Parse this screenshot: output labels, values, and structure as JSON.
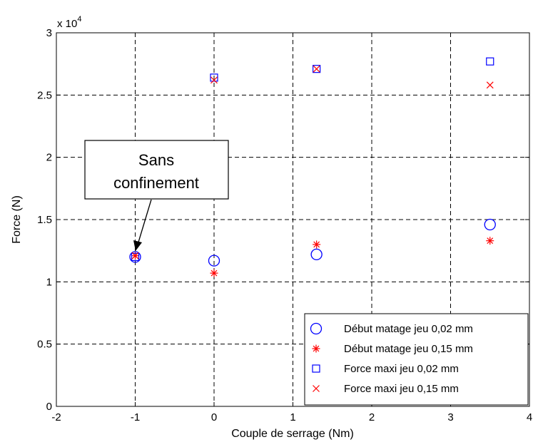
{
  "chart_data": {
    "type": "scatter",
    "xlabel": "Couple de serrage (Nm)",
    "ylabel": "Force (N)",
    "y_multiplier": "x 10",
    "y_multiplier_exp": "4",
    "xlim": [
      -2,
      4
    ],
    "ylim": [
      0,
      3
    ],
    "x_ticks": [
      "-2",
      "-1",
      "0",
      "1",
      "2",
      "3",
      "4"
    ],
    "y_ticks": [
      "0",
      "0.5",
      "1",
      "1.5",
      "2",
      "2.5",
      "3"
    ],
    "grid": true,
    "legend_position": "bottom-right",
    "series": [
      {
        "name": "Début matage jeu 0,02 mm",
        "marker": "circle",
        "color": "#0000ff",
        "points": [
          [
            -1,
            1.2
          ],
          [
            0,
            1.17
          ],
          [
            1.3,
            1.22
          ],
          [
            3.5,
            1.46
          ]
        ]
      },
      {
        "name": "Début matage jeu 0,15 mm",
        "marker": "star",
        "color": "#ff0000",
        "points": [
          [
            -1,
            1.21
          ],
          [
            0,
            1.07
          ],
          [
            1.3,
            1.3
          ],
          [
            3.5,
            1.33
          ]
        ]
      },
      {
        "name": "Force maxi jeu 0,02 mm",
        "marker": "square",
        "color": "#0000ff",
        "points": [
          [
            -1,
            1.2
          ],
          [
            0,
            2.64
          ],
          [
            1.3,
            2.71
          ],
          [
            3.5,
            2.77
          ]
        ]
      },
      {
        "name": "Force maxi jeu 0,15 mm",
        "marker": "x",
        "color": "#ff0000",
        "points": [
          [
            -1,
            1.21
          ],
          [
            0,
            2.62
          ],
          [
            1.3,
            2.71
          ],
          [
            3.5,
            2.58
          ]
        ]
      }
    ],
    "annotation": {
      "lines": [
        "Sans",
        "confinement"
      ],
      "target": [
        -1,
        1.2
      ]
    }
  }
}
